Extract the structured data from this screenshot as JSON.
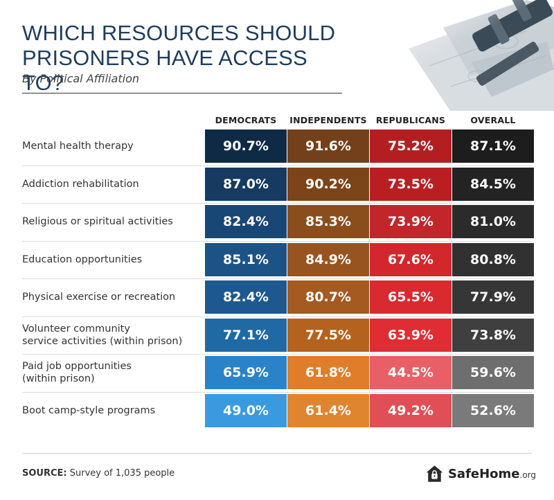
{
  "header": {
    "title": "WHICH RESOURCES SHOULD PRISONERS HAVE ACCESS TO?",
    "subtitle": "By Political Affiliation"
  },
  "colors": {
    "title": "#1e3d5c",
    "democrats": [
      "#0f2a45",
      "#163a60",
      "#184775",
      "#1c5386",
      "#1d5990",
      "#1f6aa5",
      "#2a83c8",
      "#3a9ae0"
    ],
    "independents": [
      "#74401b",
      "#7b4419",
      "#8a4e1d",
      "#985420",
      "#a45a20",
      "#b5621f",
      "#e07d2a",
      "#e0852f"
    ],
    "republicans": [
      "#b31f21",
      "#b91f22",
      "#c2252a",
      "#d2282d",
      "#d92a30",
      "#e02c33",
      "#e85f66",
      "#e04f55"
    ],
    "overall": [
      "#1d1d1d",
      "#232323",
      "#2b2b2b",
      "#313131",
      "#363636",
      "#3f3f3f",
      "#6e6e6e",
      "#7a7a7a"
    ]
  },
  "chart_data": {
    "type": "table",
    "columns": [
      "DEMOCRATS",
      "INDEPENDENTS",
      "REPUBLICANS",
      "OVERALL"
    ],
    "rows": [
      {
        "label": [
          "Mental health therapy"
        ],
        "values": [
          "90.7%",
          "91.6%",
          "75.2%",
          "87.1%"
        ]
      },
      {
        "label": [
          "Addiction rehabilitation"
        ],
        "values": [
          "87.0%",
          "90.2%",
          "73.5%",
          "84.5%"
        ]
      },
      {
        "label": [
          "Religious or spiritual activities"
        ],
        "values": [
          "82.4%",
          "85.3%",
          "73.9%",
          "81.0%"
        ]
      },
      {
        "label": [
          "Education opportunities"
        ],
        "values": [
          "85.1%",
          "84.9%",
          "67.6%",
          "80.8%"
        ]
      },
      {
        "label": [
          "Physical exercise or recreation"
        ],
        "values": [
          "82.4%",
          "80.7%",
          "65.5%",
          "77.9%"
        ]
      },
      {
        "label": [
          "Volunteer community",
          "service activities (within prison)"
        ],
        "values": [
          "77.1%",
          "77.5%",
          "63.9%",
          "73.8%"
        ]
      },
      {
        "label": [
          "Paid job opportunities",
          "(within prison)"
        ],
        "values": [
          "65.9%",
          "61.8%",
          "44.5%",
          "59.6%"
        ]
      },
      {
        "label": [
          "Boot camp-style programs"
        ],
        "values": [
          "49.0%",
          "61.4%",
          "49.2%",
          "52.6%"
        ]
      }
    ]
  },
  "footer": {
    "source_label": "SOURCE:",
    "source_text": " Survey of 1,035 people",
    "logo_name": "SafeHome",
    "logo_suffix": ".org",
    "logo_icon": "house-lock-icon"
  },
  "decoration": {
    "icon": "gavel-and-money-icon"
  }
}
